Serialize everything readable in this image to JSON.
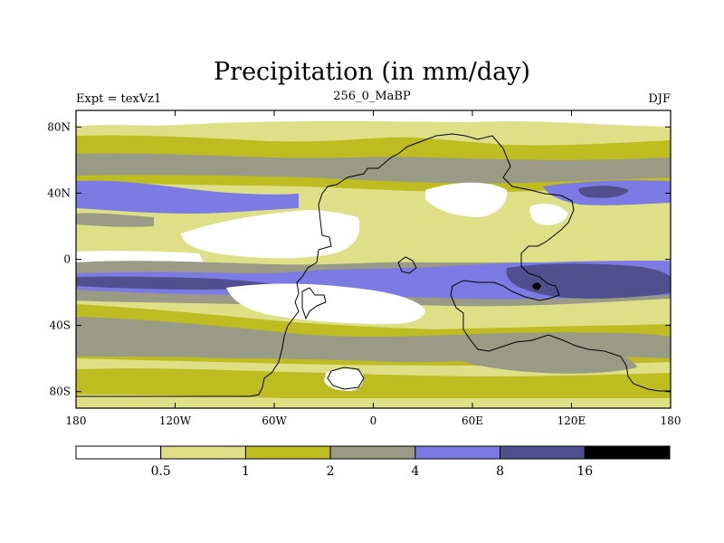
{
  "title": "Precipitation (in mm/day)",
  "subtitle_left": "Expt = texVz1",
  "subtitle_center": "256_0_MaBP",
  "subtitle_right": "DJF",
  "lon_ticks": [
    "180",
    "120W",
    "60W",
    "0",
    "60E",
    "120E",
    "180"
  ],
  "lat_ticks": [
    "80N",
    "40N",
    "0",
    "40S",
    "80S"
  ],
  "colorbar": {
    "labels": [
      "0.5",
      "1",
      "2",
      "4",
      "8",
      "16"
    ],
    "colors": [
      "#ffffff",
      "#dfdf88",
      "#bdbd22",
      "#9a9a86",
      "#7b7be3",
      "#50508e",
      "#000000"
    ]
  },
  "palette": {
    "white": "#ffffff",
    "light_yellow": "#dfdf88",
    "olive": "#bdbd22",
    "gray": "#9a9a86",
    "blue": "#7b7be3",
    "navy": "#50508e",
    "black": "#000000"
  }
}
